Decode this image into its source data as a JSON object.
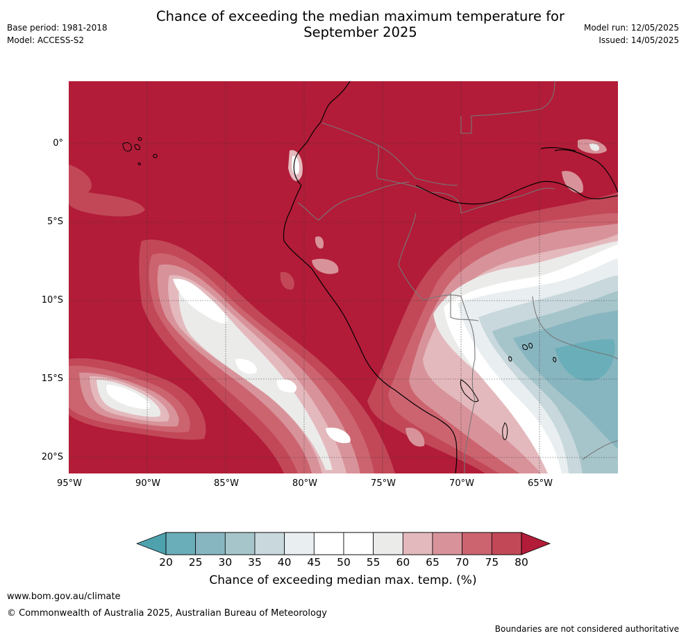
{
  "header": {
    "title_line1": "Chance of exceeding the median maximum temperature for",
    "title_line2": "September 2025",
    "base_period": "Base period: 1981-2018",
    "model": "Model: ACCESS-S2",
    "model_run": "Model run: 12/05/2025",
    "issued": "Issued: 14/05/2025"
  },
  "map": {
    "latitude_labels": [
      "0°",
      "5°S",
      "10°S",
      "15°S",
      "20°S"
    ],
    "longitude_labels": [
      "95°W",
      "90°W",
      "85°W",
      "80°W",
      "75°W",
      "70°W",
      "65°W"
    ],
    "colors": {
      "c80": "#b21c38",
      "c75": "#c24858",
      "c70": "#cc6470",
      "c65": "#d8939a",
      "c60": "#e4b9bd",
      "c55": "#ebebea",
      "c50": "#ffffff",
      "c45": "#e9eef0",
      "c40": "#c8d8dd",
      "c35": "#a6c5cb",
      "c30": "#88b6c0",
      "c25": "#6aaeb9",
      "c20": "#4ea2ae",
      "country_border": "#777777",
      "coastline": "#000000",
      "grid": "#333333"
    }
  },
  "colorbar": {
    "ticks": [
      "20",
      "25",
      "30",
      "35",
      "40",
      "45",
      "50",
      "55",
      "60",
      "65",
      "70",
      "75",
      "80"
    ],
    "colors": [
      "#6aaeb9",
      "#88b6c0",
      "#a6c5cb",
      "#c8d8dd",
      "#e9eef0",
      "#ffffff",
      "#ffffff",
      "#ebebea",
      "#e4b9bd",
      "#d8939a",
      "#cc6470",
      "#c24858"
    ],
    "under_color": "#4ea2ae",
    "over_color": "#b21c38",
    "label": "Chance of exceeding median max. temp. (%)"
  },
  "footer": {
    "url": "www.bom.gov.au/climate",
    "copyright": "© Commonwealth of Australia 2025, Australian Bureau of Meteorology",
    "disclaimer": "Boundaries are not considered authoritative"
  }
}
